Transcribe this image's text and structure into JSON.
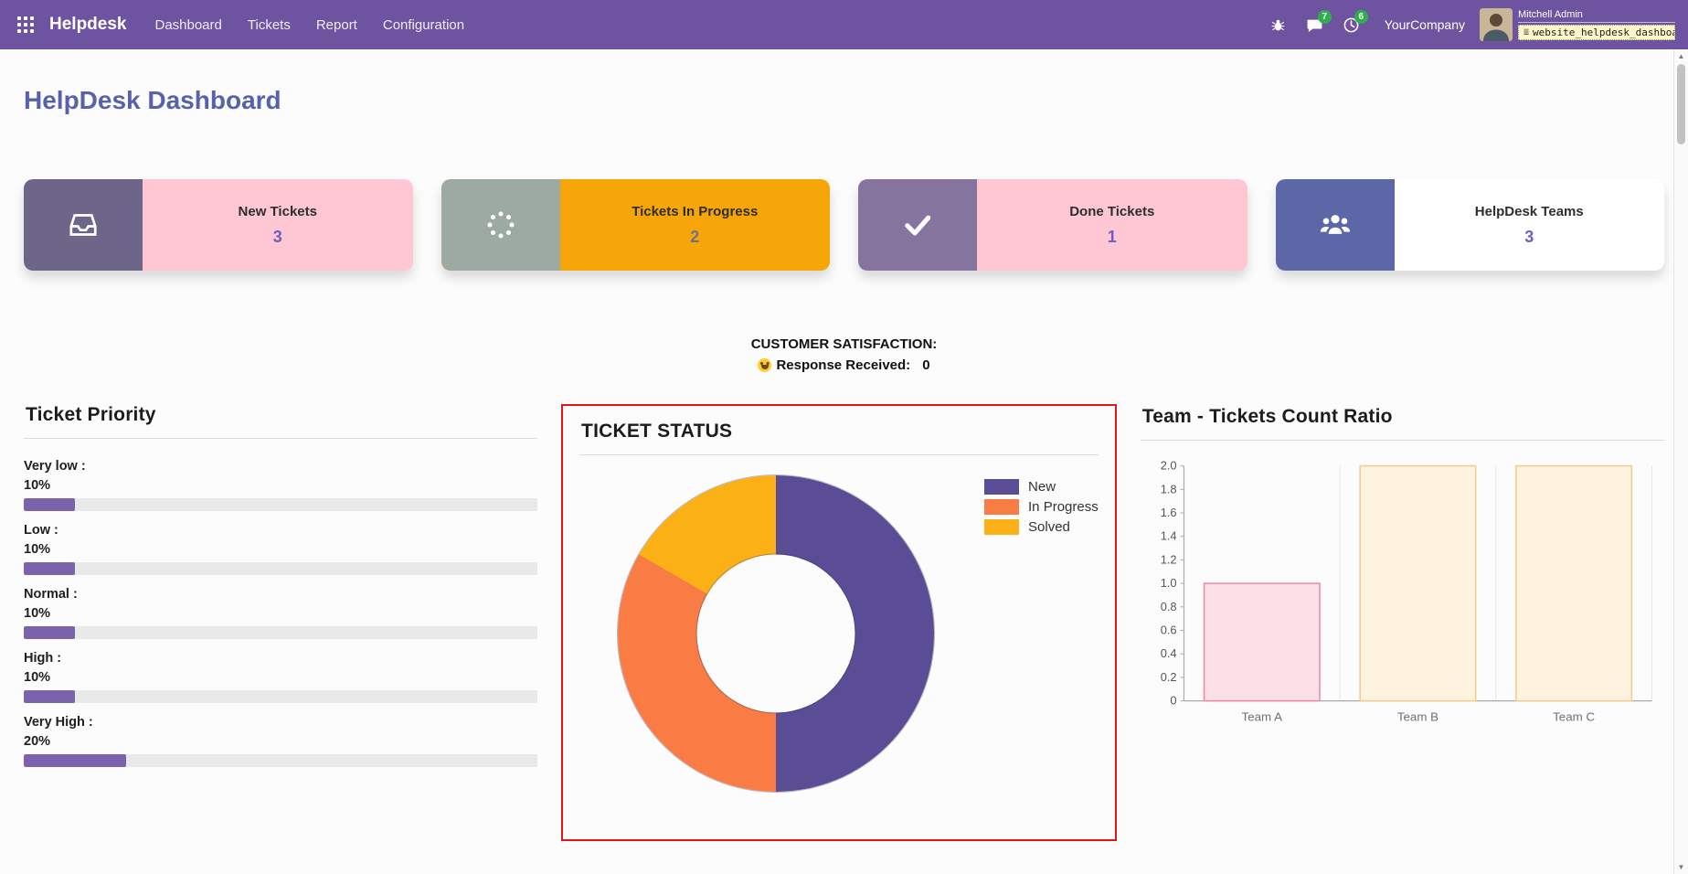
{
  "navbar": {
    "brand": "Helpdesk",
    "menu": [
      {
        "label": "Dashboard"
      },
      {
        "label": "Tickets"
      },
      {
        "label": "Report"
      },
      {
        "label": "Configuration"
      }
    ],
    "messages_badge": "7",
    "activities_badge": "6",
    "company": "YourCompany",
    "user_name": "Mitchell Admin",
    "db_label": "website_helpdesk_dashboa...",
    "icons": {
      "apps": "apps-grid-icon",
      "bug": "bug-icon",
      "messages": "chat-bubble-icon",
      "activities": "clock-icon"
    }
  },
  "page": {
    "title": "HelpDesk Dashboard"
  },
  "kpi_cards": [
    {
      "id": "new-tickets",
      "label": "New Tickets",
      "value": "3",
      "icon": "inbox-icon",
      "body_bg": "#ffc6d3",
      "icon_bg": "#6e6689",
      "value_color": "#6f5ec1"
    },
    {
      "id": "tickets-in-progress",
      "label": "Tickets In Progress",
      "value": "2",
      "icon": "spinner-icon",
      "body_bg": "#f7a609",
      "icon_bg": "#9daaa4",
      "value_color": "#756d8a"
    },
    {
      "id": "done-tickets",
      "label": "Done Tickets",
      "value": "1",
      "icon": "check-icon",
      "body_bg": "#ffc6d3",
      "icon_bg": "#85749d",
      "value_color": "#6f5ec1"
    },
    {
      "id": "helpdesk-teams",
      "label": "HelpDesk Teams",
      "value": "3",
      "icon": "team-icon",
      "body_bg": "#ffffff",
      "icon_bg": "#5b67a6",
      "value_color": "#6f5ec1"
    }
  ],
  "satisfaction": {
    "title": "CUSTOMER SATISFACTION:",
    "smiley_icon": "smiley-face-icon",
    "response_label": "Response Received:",
    "response_value": "0"
  },
  "priority_panel": {
    "title": "Ticket Priority",
    "bar_color": "#7b62ad",
    "track_color": "#e9e9e9",
    "items": [
      {
        "label": "Very low :",
        "percent_label": "10%",
        "percent": 10
      },
      {
        "label": "Low :",
        "percent_label": "10%",
        "percent": 10
      },
      {
        "label": "Normal :",
        "percent_label": "10%",
        "percent": 10
      },
      {
        "label": "High :",
        "percent_label": "10%",
        "percent": 10
      },
      {
        "label": "Very High :",
        "percent_label": "20%",
        "percent": 20
      }
    ]
  },
  "status_panel": {
    "title": "TICKET STATUS",
    "highlight_border": "#e31515"
  },
  "ratio_panel": {
    "title": "Team - Tickets Count Ratio"
  },
  "chart_data": [
    {
      "type": "pie",
      "donut": true,
      "title": "TICKET STATUS",
      "labels": [
        "New",
        "In Progress",
        "Solved"
      ],
      "values": [
        3,
        2,
        1
      ],
      "colors": [
        "#5a4d96",
        "#f97c45",
        "#fbb016"
      ],
      "legend_position": "top-right"
    },
    {
      "type": "bar",
      "title": "Team - Tickets Count Ratio",
      "categories": [
        "Team A",
        "Team B",
        "Team C"
      ],
      "values": [
        1,
        2,
        2
      ],
      "ylim": [
        0,
        2
      ],
      "ytick_step": 0.2,
      "bar_fills": [
        "#fbe0e8",
        "#fdf3df",
        "#fdf3df"
      ],
      "bar_borders": [
        "#ef8ba6",
        "#f3cd8e",
        "#f3cd8e"
      ],
      "grid": "vertical"
    }
  ]
}
